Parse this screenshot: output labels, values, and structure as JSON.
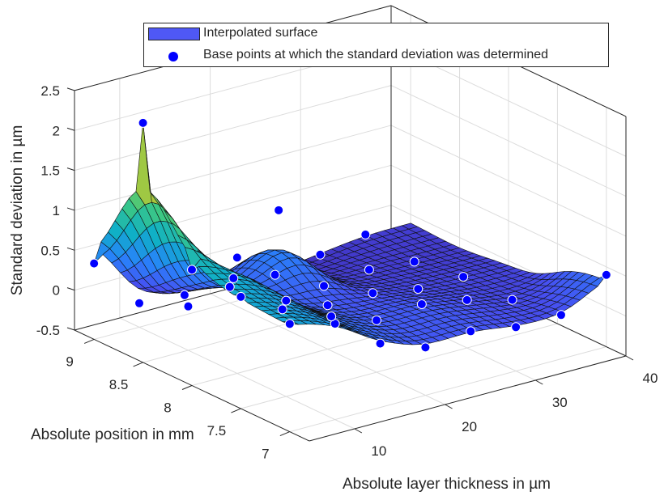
{
  "chart_data": {
    "type": "surface3d",
    "title": "",
    "xlabel": "Absolute layer thickness in µm",
    "ylabel": "Absolute position in mm",
    "zlabel": "Standard deviation in µm",
    "xlim": [
      5,
      40
    ],
    "ylim": [
      6.8,
      9.2
    ],
    "zlim": [
      -0.5,
      2.5
    ],
    "xticks": [
      "10",
      "20",
      "30",
      "40"
    ],
    "yticks": [
      "7",
      "7.5",
      "8",
      "8.5",
      "9"
    ],
    "zticks": [
      "-0.5",
      "0",
      "0.5",
      "1",
      "1.5",
      "2",
      "2.5"
    ],
    "grid": true,
    "colormap": "parula",
    "legend": {
      "placement": "top",
      "entries": [
        {
          "label": "Interpolated surface",
          "marker": "patch",
          "color": "#4f58f5"
        },
        {
          "label": "Base points at which the standard deviation was determined",
          "marker": "circle",
          "color": "#0000ff"
        }
      ]
    },
    "x_levels": [
      5,
      10,
      15,
      20,
      25,
      30,
      35,
      40
    ],
    "y_levels": [
      7.0,
      7.5,
      8.0,
      8.5,
      9.0
    ],
    "series": [
      {
        "name": "Base points at which the standard deviation was determined",
        "points": [
          {
            "x": 5,
            "y": 9.0,
            "z": 0.45
          },
          {
            "x": 5,
            "y": 8.5,
            "z": 2.5
          },
          {
            "x": 5,
            "y": 8.0,
            "z": 0.95
          },
          {
            "x": 5,
            "y": 7.5,
            "z": 0.9
          },
          {
            "x": 5,
            "y": 7.0,
            "z": 0.85
          },
          {
            "x": 10,
            "y": 9.0,
            "z": -0.2
          },
          {
            "x": 10,
            "y": 8.5,
            "z": 0.05
          },
          {
            "x": 10,
            "y": 8.0,
            "z": 0.95
          },
          {
            "x": 10,
            "y": 7.5,
            "z": 0.7
          },
          {
            "x": 10,
            "y": 7.0,
            "z": 0.7
          },
          {
            "x": 15,
            "y": 9.0,
            "z": -0.25
          },
          {
            "x": 15,
            "y": 8.5,
            "z": 0.25
          },
          {
            "x": 15,
            "y": 8.0,
            "z": 0.15
          },
          {
            "x": 15,
            "y": 7.5,
            "z": 0.35
          },
          {
            "x": 15,
            "y": 7.0,
            "z": 0.3
          },
          {
            "x": 20,
            "y": 9.0,
            "z": -0.3
          },
          {
            "x": 20,
            "y": 8.5,
            "z": 0.95
          },
          {
            "x": 20,
            "y": 8.0,
            "z": 0.05
          },
          {
            "x": 20,
            "y": 7.5,
            "z": 0.15
          },
          {
            "x": 20,
            "y": 7.0,
            "z": 0.1
          },
          {
            "x": 25,
            "y": 9.0,
            "z": -0.3
          },
          {
            "x": 25,
            "y": 8.5,
            "z": -0.15
          },
          {
            "x": 25,
            "y": 8.0,
            "z": 0.05
          },
          {
            "x": 25,
            "y": 7.5,
            "z": 0.2
          },
          {
            "x": 25,
            "y": 7.0,
            "z": 0.15
          },
          {
            "x": 30,
            "y": 9.0,
            "z": -0.2
          },
          {
            "x": 30,
            "y": 8.5,
            "z": -0.1
          },
          {
            "x": 30,
            "y": 8.0,
            "z": -0.05
          },
          {
            "x": 30,
            "y": 7.5,
            "z": 0.1
          },
          {
            "x": 30,
            "y": 7.0,
            "z": 0.05
          },
          {
            "x": 35,
            "y": 9.0,
            "z": -0.1
          },
          {
            "x": 35,
            "y": 8.5,
            "z": -0.15
          },
          {
            "x": 35,
            "y": 8.0,
            "z": -0.05
          },
          {
            "x": 35,
            "y": 7.5,
            "z": -0.05
          },
          {
            "x": 35,
            "y": 7.0,
            "z": 0.05
          },
          {
            "x": 40,
            "y": 7.0,
            "z": 0.4
          }
        ]
      }
    ]
  }
}
